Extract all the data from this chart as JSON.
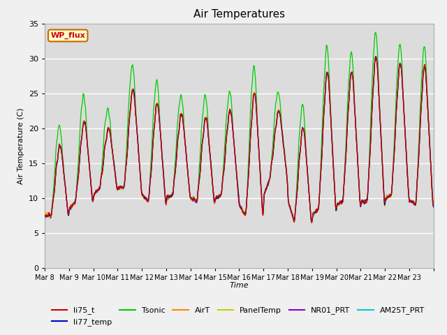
{
  "title": "Air Temperatures",
  "xlabel": "Time",
  "ylabel": "Air Temperature (C)",
  "ylim": [
    0,
    35
  ],
  "yticks": [
    0,
    5,
    10,
    15,
    20,
    25,
    30,
    35
  ],
  "x_labels": [
    "Mar 8",
    "Mar 9",
    "Mar 10",
    "Mar 11",
    "Mar 12",
    "Mar 13",
    "Mar 14",
    "Mar 15",
    "Mar 16",
    "Mar 17",
    "Mar 18",
    "Mar 19",
    "Mar 20",
    "Mar 21",
    "Mar 22",
    "Mar 23"
  ],
  "background_color": "#dcdcdc",
  "plot_bg_color": "#dcdcdc",
  "series_colors": {
    "li75_t": "#cc0000",
    "li77_temp": "#0000cc",
    "Tsonic": "#00cc00",
    "AirT": "#ff8800",
    "PanelTemp": "#cccc00",
    "NR01_PRT": "#8800cc",
    "AM25T_PRT": "#00cccc"
  },
  "wp_flux_box": {
    "text": "WP_flux",
    "facecolor": "#ffffcc",
    "edgecolor": "#cc6600",
    "textcolor": "#cc0000"
  },
  "day_peaks": [
    17.5,
    21.0,
    20.0,
    25.5,
    23.5,
    22.0,
    21.5,
    22.5,
    25.0,
    22.5,
    20.0,
    28.0,
    28.0,
    30.2,
    29.2,
    28.8
  ],
  "night_mins": [
    7.5,
    9.5,
    11.5,
    11.5,
    9.5,
    10.5,
    9.5,
    10.5,
    7.5,
    13.0,
    6.5,
    8.5,
    9.5,
    9.5,
    10.5,
    9.0
  ],
  "tsonic_extra_day": [
    3.5,
    4.5,
    3.5,
    4.5,
    4.0,
    3.5,
    4.0,
    3.5,
    4.5,
    3.5,
    4.0,
    4.5,
    3.5,
    4.5,
    3.5,
    3.5
  ],
  "fig_bg": "#f0f0f0"
}
